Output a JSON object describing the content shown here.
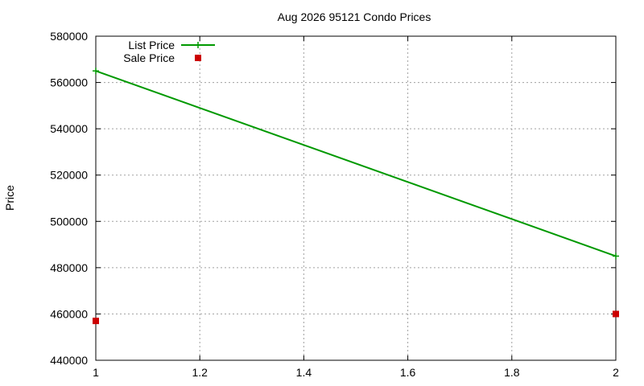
{
  "chart_data": {
    "type": "line",
    "title": "Aug 2026 95121 Condo Prices",
    "xlabel": "",
    "ylabel": "Price",
    "xlim": [
      1,
      2
    ],
    "ylim": [
      440000,
      580000
    ],
    "x_ticks": [
      1,
      1.2,
      1.4,
      1.6,
      1.8,
      2
    ],
    "x_tick_labels": [
      "1",
      "1.2",
      "1.4",
      "1.6",
      "1.8",
      "2"
    ],
    "y_ticks": [
      440000,
      460000,
      480000,
      500000,
      520000,
      540000,
      560000,
      580000
    ],
    "y_tick_labels": [
      "440000",
      "460000",
      "480000",
      "500000",
      "520000",
      "540000",
      "560000",
      "580000"
    ],
    "grid": true,
    "legend_position": "top-left",
    "series": [
      {
        "name": "List Price",
        "style": "linespoints",
        "marker": "plus",
        "color": "#009900",
        "x": [
          1,
          2
        ],
        "y": [
          565000,
          485000
        ]
      },
      {
        "name": "Sale Price",
        "style": "points",
        "marker": "square",
        "color": "#cc0000",
        "x": [
          1,
          2
        ],
        "y": [
          457000,
          460000
        ]
      }
    ]
  }
}
